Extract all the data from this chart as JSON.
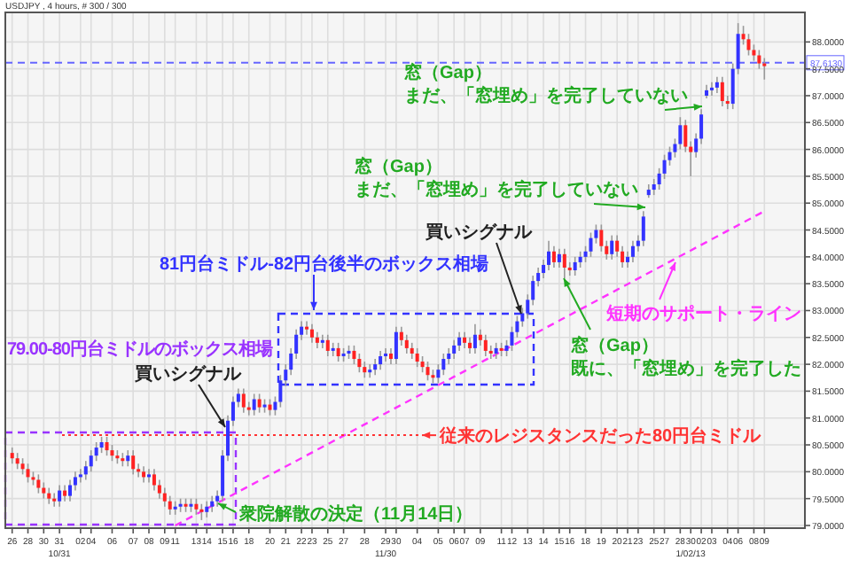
{
  "chart_data": {
    "type": "candlestick",
    "title": "USDJPY , 4 hours, # 300 / 300",
    "categories": [
      "26",
      null,
      null,
      "28",
      null,
      null,
      "30",
      null,
      null,
      "31\n10/31",
      null,
      null,
      null,
      "02",
      null,
      "04",
      null,
      null,
      null,
      "06",
      null,
      null,
      null,
      "07",
      null,
      null,
      "08",
      null,
      null,
      "09",
      null,
      "11",
      null,
      null,
      null,
      "13",
      null,
      "14",
      null,
      null,
      "15",
      null,
      "16",
      null,
      null,
      "18",
      null,
      null,
      null,
      "20",
      null,
      null,
      "21",
      null,
      null,
      "22",
      null,
      "23",
      null,
      null,
      "25",
      null,
      null,
      "27",
      null,
      null,
      null,
      "28",
      null,
      null,
      null,
      "29\n11/30",
      null,
      "30",
      null,
      null,
      null,
      "04",
      null,
      null,
      null,
      "05",
      null,
      null,
      "06",
      null,
      "07",
      null,
      null,
      "09",
      null,
      null,
      null,
      "11",
      null,
      "12",
      null,
      null,
      "13",
      null,
      null,
      "14",
      null,
      null,
      "15",
      null,
      "16",
      null,
      null,
      "18",
      null,
      null,
      "19",
      null,
      null,
      "20",
      null,
      "21",
      null,
      "23",
      null,
      null,
      "25",
      null,
      "27",
      null,
      null,
      "28",
      null,
      "30\n1/02/13",
      null,
      "02",
      null,
      "03",
      null,
      null,
      "04",
      null,
      "06",
      null,
      null,
      "08",
      null,
      "09"
    ],
    "ohlc": [
      [
        80.35,
        80.45,
        80.15,
        80.25
      ],
      [
        80.25,
        80.35,
        80.05,
        80.15
      ],
      [
        80.15,
        80.25,
        79.95,
        80.05
      ],
      [
        80.05,
        80.15,
        79.8,
        79.9
      ],
      [
        79.9,
        80.0,
        79.75,
        79.85
      ],
      [
        79.85,
        79.95,
        79.6,
        79.7
      ],
      [
        79.7,
        79.8,
        79.5,
        79.6
      ],
      [
        79.6,
        79.7,
        79.4,
        79.5
      ],
      [
        79.5,
        79.6,
        79.35,
        79.45
      ],
      [
        79.45,
        79.75,
        79.35,
        79.65
      ],
      [
        79.65,
        79.75,
        79.45,
        79.55
      ],
      [
        79.55,
        79.85,
        79.45,
        79.75
      ],
      [
        79.75,
        80.0,
        79.65,
        79.9
      ],
      [
        79.9,
        80.05,
        79.8,
        79.95
      ],
      [
        79.95,
        80.2,
        79.85,
        80.1
      ],
      [
        80.1,
        80.4,
        80.0,
        80.3
      ],
      [
        80.3,
        80.55,
        80.2,
        80.45
      ],
      [
        80.45,
        80.65,
        80.35,
        80.55
      ],
      [
        80.55,
        80.65,
        80.3,
        80.4
      ],
      [
        80.4,
        80.5,
        80.2,
        80.3
      ],
      [
        80.3,
        80.4,
        80.15,
        80.25
      ],
      [
        80.25,
        80.35,
        80.1,
        80.2
      ],
      [
        80.2,
        80.4,
        80.1,
        80.3
      ],
      [
        80.3,
        80.4,
        79.95,
        80.05
      ],
      [
        80.05,
        80.15,
        79.9,
        80.0
      ],
      [
        80.0,
        80.1,
        79.8,
        79.9
      ],
      [
        79.9,
        80.05,
        79.8,
        79.95
      ],
      [
        79.95,
        80.05,
        79.65,
        79.75
      ],
      [
        79.75,
        79.85,
        79.5,
        79.6
      ],
      [
        79.6,
        79.7,
        79.35,
        79.45
      ],
      [
        79.45,
        79.55,
        79.2,
        79.3
      ],
      [
        79.3,
        79.45,
        79.2,
        79.35
      ],
      [
        79.35,
        79.5,
        79.25,
        79.4
      ],
      [
        79.4,
        79.5,
        79.25,
        79.35
      ],
      [
        79.35,
        79.5,
        79.25,
        79.4
      ],
      [
        79.4,
        79.5,
        79.2,
        79.3
      ],
      [
        79.3,
        79.4,
        79.1,
        79.25
      ],
      [
        79.25,
        79.45,
        79.15,
        79.35
      ],
      [
        79.35,
        79.55,
        79.25,
        79.45
      ],
      [
        79.45,
        79.65,
        79.35,
        79.55
      ],
      [
        79.55,
        80.4,
        79.45,
        80.3
      ],
      [
        80.3,
        81.05,
        80.2,
        80.95
      ],
      [
        80.95,
        81.4,
        80.85,
        81.3
      ],
      [
        81.3,
        81.55,
        81.2,
        81.45
      ],
      [
        81.45,
        81.55,
        81.1,
        81.2
      ],
      [
        81.2,
        81.3,
        81.05,
        81.15
      ],
      [
        81.15,
        81.45,
        81.05,
        81.35
      ],
      [
        81.35,
        81.45,
        81.1,
        81.2
      ],
      [
        81.2,
        81.35,
        81.1,
        81.25
      ],
      [
        81.25,
        81.35,
        81.05,
        81.15
      ],
      [
        81.15,
        81.4,
        81.05,
        81.3
      ],
      [
        81.3,
        81.8,
        81.2,
        81.7
      ],
      [
        81.7,
        82.0,
        81.6,
        81.9
      ],
      [
        81.9,
        82.3,
        81.8,
        82.2
      ],
      [
        82.2,
        82.65,
        82.1,
        82.55
      ],
      [
        82.55,
        82.8,
        82.45,
        82.7
      ],
      [
        82.7,
        82.8,
        82.55,
        82.65
      ],
      [
        82.65,
        82.75,
        82.4,
        82.5
      ],
      [
        82.5,
        82.6,
        82.3,
        82.4
      ],
      [
        82.4,
        82.55,
        82.3,
        82.45
      ],
      [
        82.45,
        82.55,
        82.15,
        82.25
      ],
      [
        82.25,
        82.4,
        82.15,
        82.3
      ],
      [
        82.3,
        82.4,
        82.05,
        82.15
      ],
      [
        82.15,
        82.3,
        82.05,
        82.2
      ],
      [
        82.2,
        82.35,
        82.1,
        82.25
      ],
      [
        82.25,
        82.35,
        82.0,
        82.1
      ],
      [
        82.1,
        82.2,
        81.85,
        81.95
      ],
      [
        81.95,
        82.05,
        81.75,
        81.85
      ],
      [
        81.85,
        82.0,
        81.75,
        81.9
      ],
      [
        81.9,
        82.1,
        81.8,
        82.0
      ],
      [
        82.0,
        82.25,
        81.9,
        82.15
      ],
      [
        82.15,
        82.3,
        82.05,
        82.2
      ],
      [
        82.2,
        82.3,
        82.0,
        82.1
      ],
      [
        82.1,
        82.7,
        82.0,
        82.6
      ],
      [
        82.6,
        82.7,
        82.35,
        82.45
      ],
      [
        82.45,
        82.55,
        82.2,
        82.3
      ],
      [
        82.3,
        82.4,
        82.1,
        82.2
      ],
      [
        82.2,
        82.3,
        81.95,
        82.05
      ],
      [
        82.05,
        82.15,
        81.85,
        81.95
      ],
      [
        81.95,
        82.05,
        81.7,
        81.8
      ],
      [
        81.8,
        81.9,
        81.65,
        81.75
      ],
      [
        81.75,
        82.0,
        81.65,
        81.9
      ],
      [
        81.9,
        82.2,
        81.8,
        82.1
      ],
      [
        82.1,
        82.3,
        82.0,
        82.2
      ],
      [
        82.2,
        82.45,
        82.1,
        82.35
      ],
      [
        82.35,
        82.6,
        82.25,
        82.5
      ],
      [
        82.5,
        82.6,
        82.3,
        82.4
      ],
      [
        82.4,
        82.5,
        82.2,
        82.3
      ],
      [
        82.3,
        82.75,
        82.2,
        82.55
      ],
      [
        82.55,
        82.65,
        82.35,
        82.45
      ],
      [
        82.45,
        82.55,
        82.15,
        82.25
      ],
      [
        82.25,
        82.35,
        82.1,
        82.2
      ],
      [
        82.2,
        82.4,
        82.1,
        82.3
      ],
      [
        82.3,
        82.4,
        82.15,
        82.25
      ],
      [
        82.25,
        82.45,
        82.15,
        82.35
      ],
      [
        82.35,
        82.7,
        82.25,
        82.6
      ],
      [
        82.6,
        82.9,
        82.5,
        82.8
      ],
      [
        82.8,
        83.05,
        82.7,
        82.95
      ],
      [
        82.95,
        83.3,
        82.85,
        83.2
      ],
      [
        83.2,
        83.65,
        83.1,
        83.55
      ],
      [
        83.55,
        83.8,
        83.45,
        83.7
      ],
      [
        83.7,
        83.95,
        83.6,
        83.85
      ],
      [
        83.85,
        84.3,
        83.75,
        84.1
      ],
      [
        84.1,
        84.2,
        83.8,
        83.9
      ],
      [
        83.9,
        84.15,
        83.8,
        84.05
      ],
      [
        84.05,
        84.15,
        83.6,
        83.8
      ],
      [
        83.8,
        83.9,
        83.65,
        83.75
      ],
      [
        83.75,
        84.0,
        83.65,
        83.9
      ],
      [
        83.9,
        84.1,
        83.8,
        84.0
      ],
      [
        84.0,
        84.2,
        83.9,
        84.1
      ],
      [
        84.1,
        84.45,
        84.0,
        84.35
      ],
      [
        84.35,
        84.6,
        84.25,
        84.5
      ],
      [
        84.5,
        84.6,
        84.1,
        84.2
      ],
      [
        84.2,
        84.3,
        83.95,
        84.05
      ],
      [
        84.05,
        84.4,
        83.95,
        84.3
      ],
      [
        84.3,
        84.4,
        84.0,
        84.1
      ],
      [
        84.1,
        84.2,
        83.8,
        83.9
      ],
      [
        83.9,
        84.1,
        83.8,
        84.0
      ],
      [
        84.0,
        84.3,
        83.9,
        84.2
      ],
      [
        84.2,
        84.4,
        84.1,
        84.3
      ],
      [
        84.3,
        84.85,
        84.2,
        84.75
      ],
      [
        85.15,
        85.35,
        85.1,
        85.25
      ],
      [
        85.25,
        85.45,
        85.15,
        85.35
      ],
      [
        85.35,
        85.65,
        85.25,
        85.55
      ],
      [
        85.55,
        85.9,
        85.45,
        85.8
      ],
      [
        85.8,
        86.05,
        85.7,
        85.95
      ],
      [
        85.95,
        86.2,
        85.85,
        86.1
      ],
      [
        86.1,
        86.6,
        86.0,
        86.45
      ],
      [
        86.45,
        86.55,
        85.95,
        86.05
      ],
      [
        86.05,
        86.15,
        85.5,
        85.95
      ],
      [
        85.95,
        86.3,
        85.85,
        86.2
      ],
      [
        86.2,
        86.75,
        86.1,
        86.65
      ],
      [
        87.0,
        87.2,
        86.95,
        87.1
      ],
      [
        87.1,
        87.25,
        87.0,
        87.15
      ],
      [
        87.15,
        87.35,
        87.05,
        87.25
      ],
      [
        87.25,
        87.35,
        86.8,
        86.9
      ],
      [
        86.9,
        87.0,
        86.75,
        86.85
      ],
      [
        86.85,
        87.6,
        86.75,
        87.5
      ],
      [
        87.5,
        88.35,
        87.4,
        88.15
      ],
      [
        88.15,
        88.3,
        87.95,
        88.05
      ],
      [
        88.05,
        88.15,
        87.75,
        87.85
      ],
      [
        87.85,
        87.95,
        87.65,
        87.75
      ],
      [
        87.75,
        87.85,
        87.5,
        87.6
      ],
      [
        87.6,
        87.7,
        87.3,
        87.55
      ]
    ],
    "series": [
      {
        "type": "line",
        "color": "#ff33ff",
        "line_style": "dashed",
        "values": [
          null,
          null,
          null,
          null,
          null,
          null,
          null,
          null,
          null,
          null,
          null,
          null,
          null,
          null,
          null,
          null,
          null,
          null,
          null,
          null,
          null,
          null,
          null,
          null,
          null,
          null,
          null,
          null,
          null,
          null,
          null,
          79.0,
          null,
          null,
          null,
          null,
          null,
          null,
          null,
          null,
          null,
          null,
          null,
          null,
          null,
          null,
          null,
          null,
          null,
          null,
          null,
          null,
          null,
          null,
          null,
          null,
          null,
          null,
          null,
          null,
          null,
          null,
          null,
          null,
          null,
          null,
          null,
          null,
          null,
          null,
          null,
          null,
          null,
          null,
          null,
          null,
          null,
          null,
          null,
          null,
          null,
          null,
          null,
          null,
          null,
          null,
          null,
          null,
          null,
          null,
          null,
          null,
          null,
          null,
          null,
          null,
          null,
          null,
          null,
          null,
          null,
          null,
          null,
          null,
          null,
          null,
          null,
          null,
          null,
          null,
          null,
          null,
          null,
          null,
          null,
          null,
          null,
          null,
          null,
          null,
          null,
          null,
          null,
          null,
          null,
          null,
          null,
          null,
          null,
          null,
          null,
          null,
          null,
          null,
          null,
          null,
          null,
          null,
          null,
          null,
          null,
          null,
          null,
          84.85
        ]
      }
    ],
    "ylim": [
      78.95,
      88.55
    ],
    "yticks": [
      {
        "value": 79,
        "label": "79.0000"
      },
      {
        "value": 79.5,
        "label": "79.5000"
      },
      {
        "value": 80,
        "label": "80.0000"
      },
      {
        "value": 80.5,
        "label": "80.5000"
      },
      {
        "value": 81,
        "label": "81.0000"
      },
      {
        "value": 81.5,
        "label": "81.5000"
      },
      {
        "value": 82,
        "label": "82.0000"
      },
      {
        "value": 82.5,
        "label": "82.5000"
      },
      {
        "value": 83,
        "label": "83.0000"
      },
      {
        "value": 83.5,
        "label": "83.5000"
      },
      {
        "value": 84,
        "label": "84.0000"
      },
      {
        "value": 84.5,
        "label": "84.5000"
      },
      {
        "value": 85,
        "label": "85.0000"
      },
      {
        "value": 85.5,
        "label": "85.5000"
      },
      {
        "value": 86,
        "label": "86.0000"
      },
      {
        "value": 86.5,
        "label": "86.5000"
      },
      {
        "value": 87,
        "label": "87.0000"
      },
      {
        "value": 87.5,
        "label": "87.5000"
      },
      {
        "value": 88,
        "label": "88.0000"
      }
    ],
    "grid": true,
    "ref_lines": [
      {
        "axis": "y",
        "value": 87.613,
        "label": "87.6130",
        "color": "#6666ff",
        "line_style": "dashed"
      },
      {
        "axis": "y",
        "value": 80.68,
        "label": "従来のレジスタンスだった80円台ミドル",
        "color": "#ff3333",
        "line_style": "dotted"
      }
    ],
    "annotations": [
      "79.00-80円台ミドルのボックス相場",
      "81円台ミドル-82円台後半のボックス相場",
      "買いシグナル",
      "買いシグナル",
      "衆院解散の決定（11月14日）",
      "窓（Gap）",
      "まだ、「窓埋め」を完了していない",
      "窓（Gap）",
      "まだ、「窓埋め」を完了していない",
      "窓（Gap）",
      "既に、「窓埋め」を完了した",
      "短期のサポート・ライン"
    ]
  }
}
